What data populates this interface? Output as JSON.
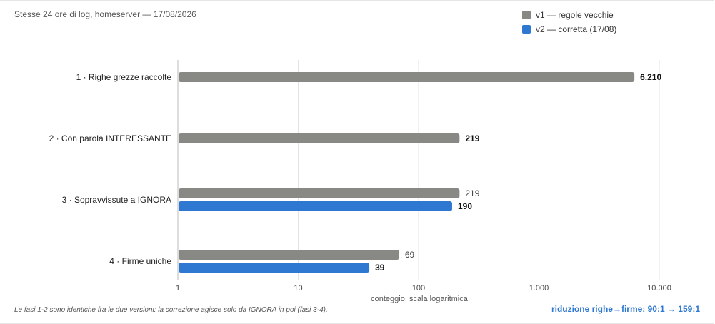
{
  "subtitle": "Stesse 24 ore di log, homeserver — 17/08/2026",
  "colors": {
    "v1": "#888885",
    "v2": "#2e78d2",
    "grid": "#e3e3e3",
    "axis": "#bbbbbb"
  },
  "chart_data": {
    "type": "bar",
    "orientation": "horizontal",
    "x_scale": "log",
    "xlim": [
      1,
      10000
    ],
    "xlabel": "conteggio, scala logaritmica",
    "ticks": [
      {
        "value": 1,
        "label": "1"
      },
      {
        "value": 10,
        "label": "10"
      },
      {
        "value": 100,
        "label": "100"
      },
      {
        "value": 1000,
        "label": "1.000"
      },
      {
        "value": 10000,
        "label": "10.000"
      }
    ],
    "grid": true,
    "legend_position": "top-right",
    "series": [
      {
        "key": "v1",
        "name": "v1 — regole vecchie",
        "color": "#888885"
      },
      {
        "key": "v2",
        "name": "v2 — corretta (17/08)",
        "color": "#2e78d2"
      }
    ],
    "categories": [
      {
        "label": "1 · Righe grezze raccolte",
        "bars": [
          {
            "series": "v1",
            "value": 6210,
            "label": "6.210",
            "bold": true
          }
        ]
      },
      {
        "label": "2 · Con parola INTERESSANTE",
        "bars": [
          {
            "series": "v1",
            "value": 219,
            "label": "219",
            "bold": true
          }
        ]
      },
      {
        "label": "3 · Sopravvissute a IGNORA",
        "bars": [
          {
            "series": "v1",
            "value": 219,
            "label": "219",
            "bold": false
          },
          {
            "series": "v2",
            "value": 190,
            "label": "190",
            "bold": true
          }
        ]
      },
      {
        "label": "4 · Firme uniche",
        "bars": [
          {
            "series": "v1",
            "value": 69,
            "label": "69",
            "bold": false
          },
          {
            "series": "v2",
            "value": 39,
            "label": "39",
            "bold": true
          }
        ]
      }
    ]
  },
  "footnote": "Le fasi 1-2 sono identiche fra le due versioni: la correzione agisce solo da IGNORA in poi (fasi 3-4).",
  "reduction": "riduzione righe→firme: 90:1 → 159:1"
}
